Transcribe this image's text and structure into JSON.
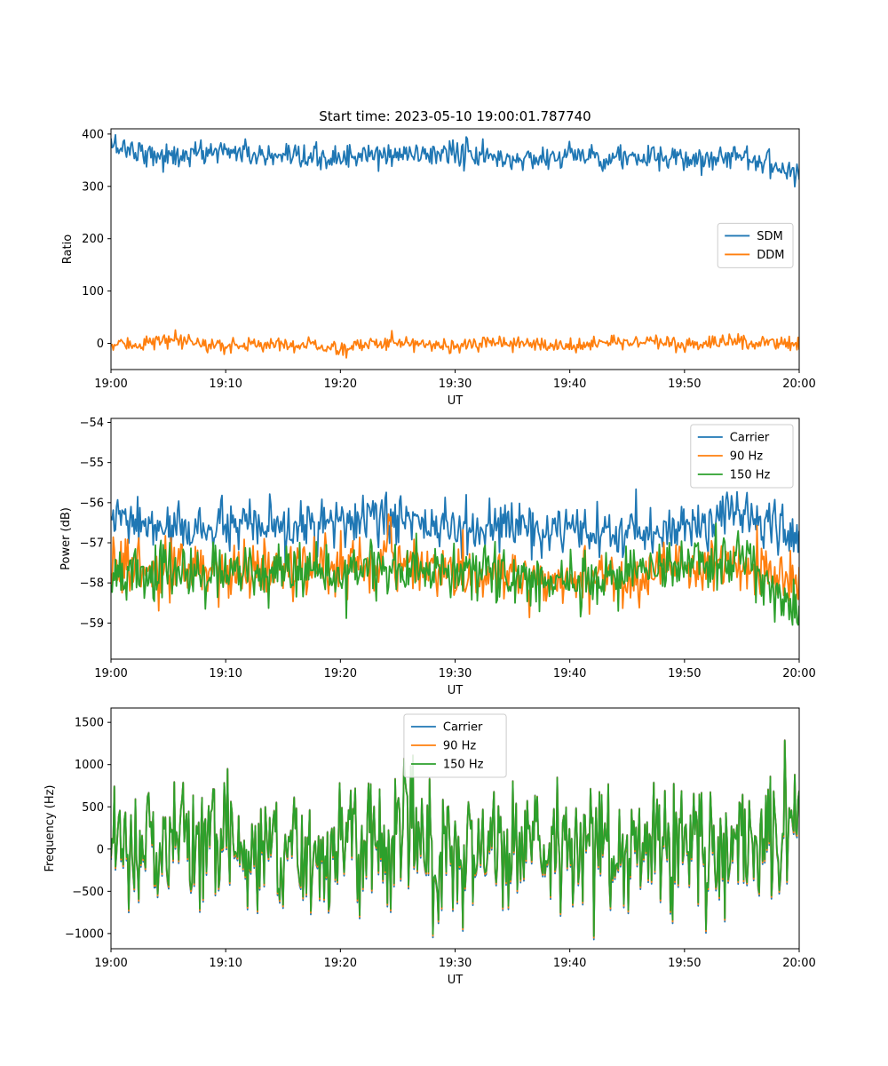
{
  "title": "Start time: 2023-05-10 19:00:01.787740",
  "colors": {
    "blue": "#1f77b4",
    "orange": "#ff7f0e",
    "green": "#2ca02c"
  },
  "chart_data": [
    {
      "type": "line",
      "ylabel": "Ratio",
      "xlabel": "UT",
      "xlim": [
        "19:00",
        "20:00"
      ],
      "xticks": [
        "19:00",
        "19:10",
        "19:20",
        "19:30",
        "19:40",
        "19:50",
        "20:00"
      ],
      "ylim": [
        -50,
        410
      ],
      "yticks": [
        0,
        100,
        200,
        300,
        400
      ],
      "ytick_labels": [
        "0",
        "100",
        "200",
        "300",
        "400"
      ],
      "legend": "center-right",
      "x": [
        "19:00",
        "19:05",
        "19:10",
        "19:15",
        "19:20",
        "19:25",
        "19:30",
        "19:35",
        "19:40",
        "19:45",
        "19:50",
        "19:55",
        "20:00"
      ],
      "series": [
        {
          "name": "SDM",
          "color": "#1f77b4",
          "values": [
            380,
            355,
            370,
            350,
            355,
            360,
            365,
            350,
            360,
            355,
            350,
            360,
            325
          ]
        },
        {
          "name": "DDM",
          "color": "#ff7f0e",
          "values": [
            -5,
            5,
            -5,
            0,
            -10,
            5,
            -5,
            0,
            -5,
            5,
            -5,
            5,
            0
          ]
        }
      ]
    },
    {
      "type": "line",
      "ylabel": "Power (dB)",
      "xlabel": "UT",
      "xlim": [
        "19:00",
        "20:00"
      ],
      "xticks": [
        "19:00",
        "19:10",
        "19:20",
        "19:30",
        "19:40",
        "19:50",
        "20:00"
      ],
      "ylim": [
        -59.9,
        -53.9
      ],
      "yticks": [
        -59,
        -58,
        -57,
        -56,
        -55,
        -54
      ],
      "ytick_labels": [
        "−59",
        "−58",
        "−57",
        "−56",
        "−55",
        "−54"
      ],
      "legend": "top-right",
      "x": [
        "19:00",
        "19:05",
        "19:10",
        "19:15",
        "19:20",
        "19:25",
        "19:30",
        "19:35",
        "19:40",
        "19:45",
        "19:50",
        "19:55",
        "20:00"
      ],
      "series": [
        {
          "name": "Carrier",
          "color": "#1f77b4",
          "values": [
            -56.4,
            -56.7,
            -56.6,
            -56.7,
            -56.5,
            -56.4,
            -56.7,
            -56.6,
            -56.8,
            -56.8,
            -56.6,
            -56.2,
            -56.9
          ]
        },
        {
          "name": "90 Hz",
          "color": "#ff7f0e",
          "values": [
            -57.5,
            -57.8,
            -57.7,
            -57.6,
            -57.6,
            -57.4,
            -57.8,
            -57.9,
            -57.9,
            -57.8,
            -57.7,
            -57.5,
            -58.0
          ]
        },
        {
          "name": "150 Hz",
          "color": "#2ca02c",
          "values": [
            -57.8,
            -57.7,
            -57.8,
            -57.7,
            -57.8,
            -57.5,
            -57.7,
            -57.9,
            -58.0,
            -57.8,
            -57.5,
            -57.4,
            -58.7
          ]
        }
      ]
    },
    {
      "type": "line",
      "ylabel": "Frequency (Hz)",
      "xlabel": "UT",
      "xlim": [
        "19:00",
        "20:00"
      ],
      "xticks": [
        "19:00",
        "19:10",
        "19:20",
        "19:30",
        "19:40",
        "19:50",
        "20:00"
      ],
      "ylim": [
        -1180,
        1670
      ],
      "yticks": [
        -1000,
        -500,
        0,
        500,
        1000,
        1500
      ],
      "ytick_labels": [
        "−1000",
        "−500",
        "0",
        "500",
        "1000",
        "1500"
      ],
      "legend": "top-center",
      "x": [
        "19:00",
        "19:05",
        "19:10",
        "19:15",
        "19:20",
        "19:25",
        "19:30",
        "19:35",
        "19:40",
        "19:45",
        "19:50",
        "19:55",
        "20:00"
      ],
      "series": [
        {
          "name": "Carrier",
          "color": "#1f77b4",
          "values": [
            0,
            100,
            50,
            0,
            -50,
            100,
            0,
            50,
            0,
            50,
            100,
            50,
            400
          ]
        },
        {
          "name": "90 Hz",
          "color": "#ff7f0e",
          "values": [
            0,
            100,
            50,
            0,
            -50,
            100,
            0,
            50,
            0,
            50,
            100,
            50,
            400
          ]
        },
        {
          "name": "150 Hz",
          "color": "#2ca02c",
          "values": [
            0,
            100,
            50,
            0,
            -50,
            100,
            0,
            50,
            0,
            50,
            100,
            50,
            400
          ]
        }
      ]
    }
  ]
}
